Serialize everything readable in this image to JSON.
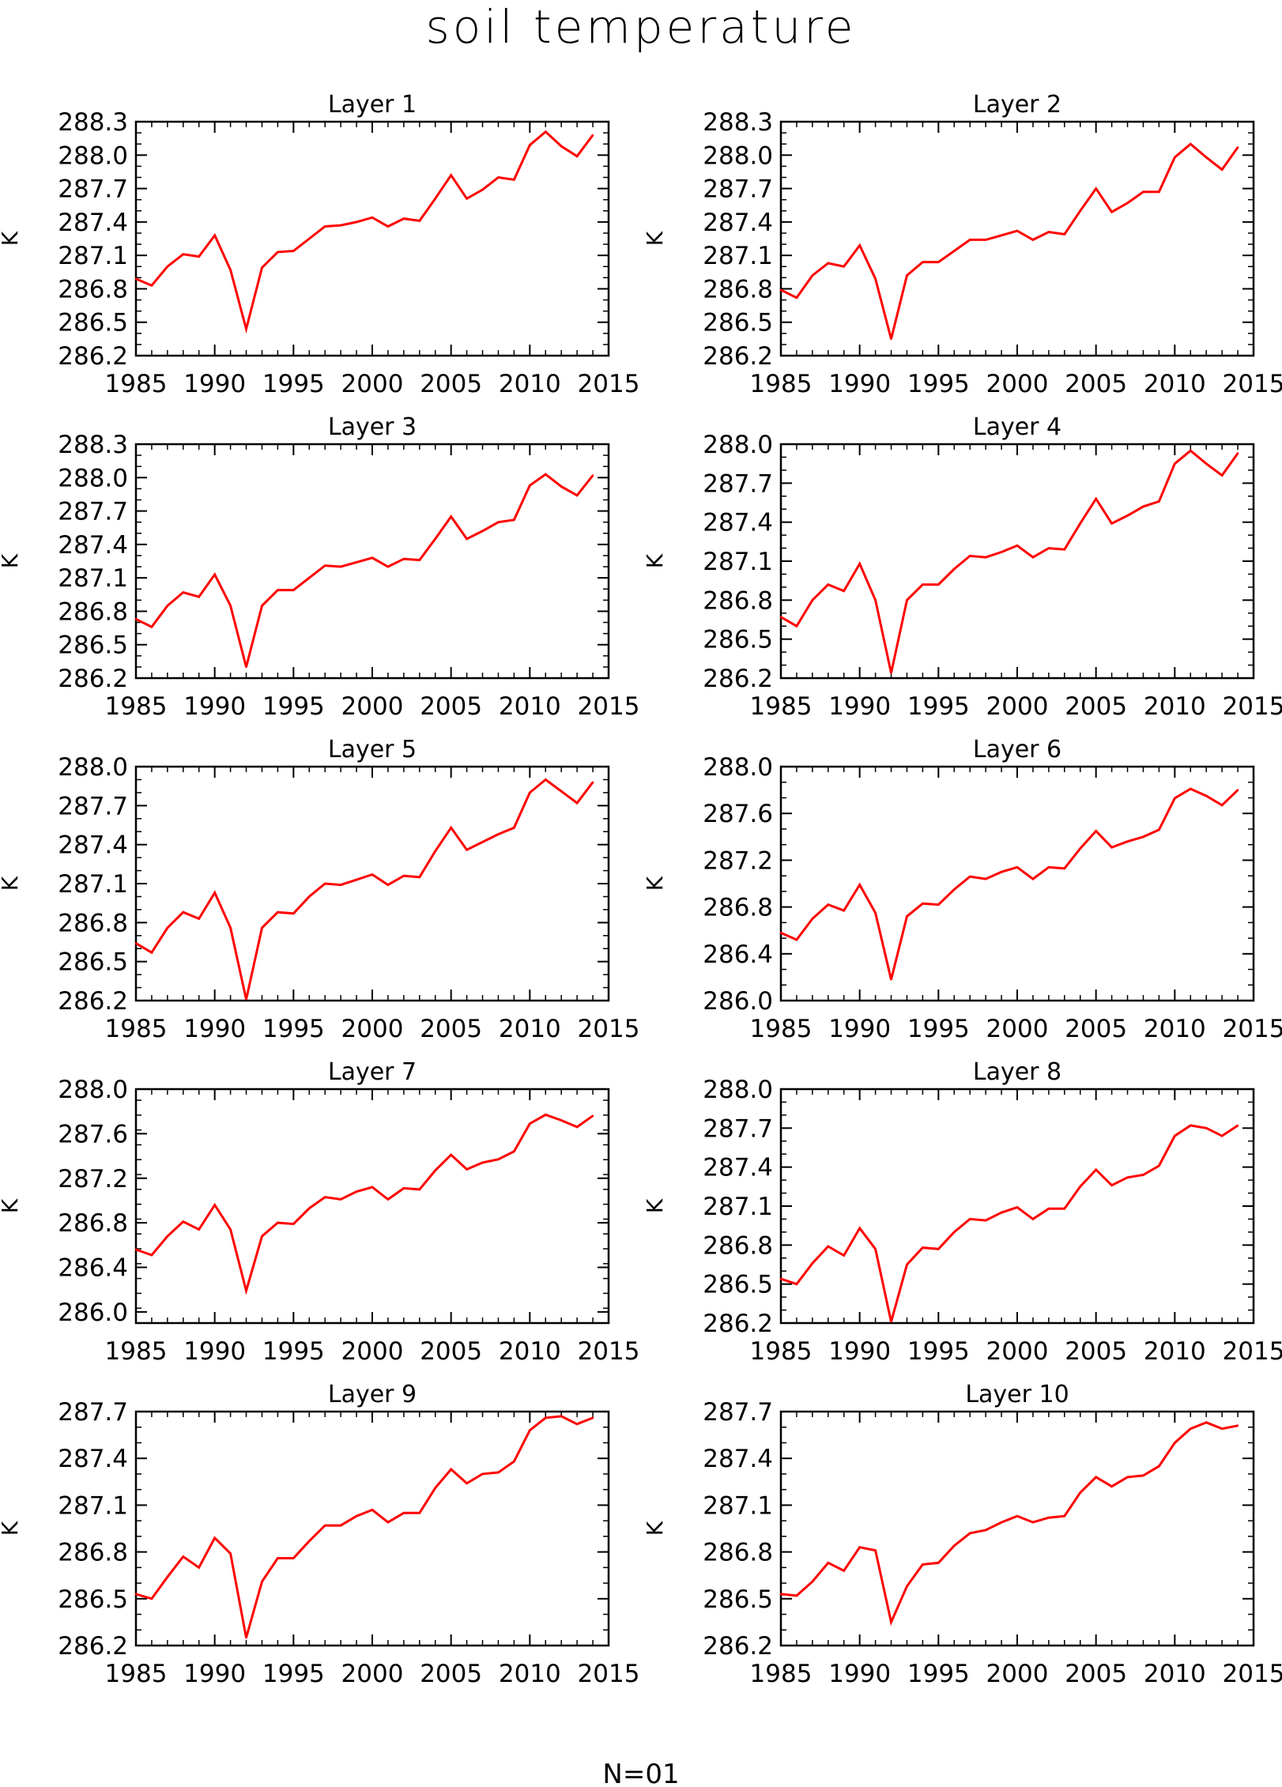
{
  "title": "soil temperature",
  "footer": "N=01",
  "line_color": "#ff0000",
  "chart_data": [
    {
      "type": "line",
      "title": "Layer 1",
      "xlabel": "",
      "ylabel": "K",
      "xlim": [
        1985,
        2015
      ],
      "ylim": [
        286.2,
        288.3
      ],
      "xticks": [
        1985,
        1990,
        1995,
        2000,
        2005,
        2010,
        2015
      ],
      "yticks": [
        "288.3",
        "288.0",
        "287.7",
        "287.4",
        "287.1",
        "286.8",
        "286.5",
        "286.2"
      ],
      "x": [
        1985,
        1986,
        1987,
        1988,
        1989,
        1990,
        1991,
        1992,
        1993,
        1994,
        1995,
        1996,
        1997,
        1998,
        1999,
        2000,
        2001,
        2002,
        2003,
        2004,
        2005,
        2006,
        2007,
        2008,
        2009,
        2010,
        2011,
        2012,
        2013,
        2014
      ],
      "values": [
        286.89,
        286.83,
        287.0,
        287.11,
        287.09,
        287.28,
        286.97,
        286.44,
        286.99,
        287.13,
        287.14,
        287.25,
        287.36,
        287.37,
        287.4,
        287.44,
        287.36,
        287.43,
        287.41,
        287.61,
        287.82,
        287.61,
        287.69,
        287.8,
        287.78,
        288.09,
        288.21,
        288.08,
        287.99,
        288.18
      ]
    },
    {
      "type": "line",
      "title": "Layer 2",
      "xlabel": "",
      "ylabel": "K",
      "xlim": [
        1985,
        2015
      ],
      "ylim": [
        286.2,
        288.3
      ],
      "xticks": [
        1985,
        1990,
        1995,
        2000,
        2005,
        2010,
        2015
      ],
      "yticks": [
        "288.3",
        "288.0",
        "287.7",
        "287.4",
        "287.1",
        "286.8",
        "286.5",
        "286.2"
      ],
      "x": [
        1985,
        1986,
        1987,
        1988,
        1989,
        1990,
        1991,
        1992,
        1993,
        1994,
        1995,
        1996,
        1997,
        1998,
        1999,
        2000,
        2001,
        2002,
        2003,
        2004,
        2005,
        2006,
        2007,
        2008,
        2009,
        2010,
        2011,
        2012,
        2013,
        2014
      ],
      "values": [
        286.79,
        286.72,
        286.92,
        287.03,
        287.0,
        287.19,
        286.89,
        286.35,
        286.92,
        287.04,
        287.04,
        287.14,
        287.24,
        287.24,
        287.28,
        287.32,
        287.24,
        287.31,
        287.29,
        287.5,
        287.7,
        287.49,
        287.57,
        287.67,
        287.67,
        287.98,
        288.1,
        287.98,
        287.87,
        288.07
      ]
    },
    {
      "type": "line",
      "title": "Layer 3",
      "xlabel": "",
      "ylabel": "K",
      "xlim": [
        1985,
        2015
      ],
      "ylim": [
        286.2,
        288.3
      ],
      "xticks": [
        1985,
        1990,
        1995,
        2000,
        2005,
        2010,
        2015
      ],
      "yticks": [
        "288.3",
        "288.0",
        "287.7",
        "287.4",
        "287.1",
        "286.8",
        "286.5",
        "286.2"
      ],
      "x": [
        1985,
        1986,
        1987,
        1988,
        1989,
        1990,
        1991,
        1992,
        1993,
        1994,
        1995,
        1996,
        1997,
        1998,
        1999,
        2000,
        2001,
        2002,
        2003,
        2004,
        2005,
        2006,
        2007,
        2008,
        2009,
        2010,
        2011,
        2012,
        2013,
        2014
      ],
      "values": [
        286.73,
        286.66,
        286.85,
        286.97,
        286.93,
        287.13,
        286.85,
        286.3,
        286.85,
        286.99,
        286.99,
        287.1,
        287.21,
        287.2,
        287.24,
        287.28,
        287.2,
        287.27,
        287.26,
        287.45,
        287.65,
        287.45,
        287.52,
        287.6,
        287.62,
        287.93,
        288.03,
        287.92,
        287.84,
        288.02
      ]
    },
    {
      "type": "line",
      "title": "Layer 4",
      "xlabel": "",
      "ylabel": "K",
      "xlim": [
        1985,
        2015
      ],
      "ylim": [
        286.2,
        288.0
      ],
      "xticks": [
        1985,
        1990,
        1995,
        2000,
        2005,
        2010,
        2015
      ],
      "yticks": [
        "288.0",
        "287.7",
        "287.4",
        "287.1",
        "286.8",
        "286.5",
        "286.2"
      ],
      "x": [
        1985,
        1986,
        1987,
        1988,
        1989,
        1990,
        1991,
        1992,
        1993,
        1994,
        1995,
        1996,
        1997,
        1998,
        1999,
        2000,
        2001,
        2002,
        2003,
        2004,
        2005,
        2006,
        2007,
        2008,
        2009,
        2010,
        2011,
        2012,
        2013,
        2014
      ],
      "values": [
        286.67,
        286.6,
        286.8,
        286.92,
        286.87,
        287.08,
        286.8,
        286.24,
        286.8,
        286.92,
        286.92,
        287.04,
        287.14,
        287.13,
        287.17,
        287.22,
        287.13,
        287.2,
        287.19,
        287.39,
        287.58,
        287.39,
        287.45,
        287.52,
        287.56,
        287.85,
        287.95,
        287.85,
        287.76,
        287.93
      ]
    },
    {
      "type": "line",
      "title": "Layer 5",
      "xlabel": "",
      "ylabel": "K",
      "xlim": [
        1985,
        2015
      ],
      "ylim": [
        286.2,
        288.0
      ],
      "xticks": [
        1985,
        1990,
        1995,
        2000,
        2005,
        2010,
        2015
      ],
      "yticks": [
        "288.0",
        "287.7",
        "287.4",
        "287.1",
        "286.8",
        "286.5",
        "286.2"
      ],
      "x": [
        1985,
        1986,
        1987,
        1988,
        1989,
        1990,
        1991,
        1992,
        1993,
        1994,
        1995,
        1996,
        1997,
        1998,
        1999,
        2000,
        2001,
        2002,
        2003,
        2004,
        2005,
        2006,
        2007,
        2008,
        2009,
        2010,
        2011,
        2012,
        2013,
        2014
      ],
      "values": [
        286.64,
        286.57,
        286.76,
        286.88,
        286.83,
        287.03,
        286.76,
        286.21,
        286.76,
        286.88,
        286.87,
        287.0,
        287.1,
        287.09,
        287.13,
        287.17,
        287.09,
        287.16,
        287.15,
        287.35,
        287.53,
        287.36,
        287.42,
        287.48,
        287.53,
        287.8,
        287.9,
        287.81,
        287.72,
        287.88
      ]
    },
    {
      "type": "line",
      "title": "Layer 6",
      "xlabel": "",
      "ylabel": "K",
      "xlim": [
        1985,
        2015
      ],
      "ylim": [
        286.0,
        288.0
      ],
      "xticks": [
        1985,
        1990,
        1995,
        2000,
        2005,
        2010,
        2015
      ],
      "yticks": [
        "288.0",
        "287.6",
        "287.2",
        "286.8",
        "286.4",
        "286.0"
      ],
      "x": [
        1985,
        1986,
        1987,
        1988,
        1989,
        1990,
        1991,
        1992,
        1993,
        1994,
        1995,
        1996,
        1997,
        1998,
        1999,
        2000,
        2001,
        2002,
        2003,
        2004,
        2005,
        2006,
        2007,
        2008,
        2009,
        2010,
        2011,
        2012,
        2013,
        2014
      ],
      "values": [
        286.58,
        286.52,
        286.7,
        286.82,
        286.77,
        286.99,
        286.75,
        286.18,
        286.72,
        286.83,
        286.82,
        286.95,
        287.06,
        287.04,
        287.1,
        287.14,
        287.04,
        287.14,
        287.13,
        287.3,
        287.45,
        287.31,
        287.36,
        287.4,
        287.46,
        287.73,
        287.81,
        287.75,
        287.67,
        287.8
      ]
    },
    {
      "type": "line",
      "title": "Layer 7",
      "xlabel": "",
      "ylabel": "K",
      "xlim": [
        1985,
        2015
      ],
      "ylim": [
        285.9,
        288.0
      ],
      "xticks": [
        1985,
        1990,
        1995,
        2000,
        2005,
        2010,
        2015
      ],
      "yticks": [
        "288.0",
        "287.6",
        "287.2",
        "286.8",
        "286.4",
        "286.0"
      ],
      "x": [
        1985,
        1986,
        1987,
        1988,
        1989,
        1990,
        1991,
        1992,
        1993,
        1994,
        1995,
        1996,
        1997,
        1998,
        1999,
        2000,
        2001,
        2002,
        2003,
        2004,
        2005,
        2006,
        2007,
        2008,
        2009,
        2010,
        2011,
        2012,
        2013,
        2014
      ],
      "values": [
        286.56,
        286.51,
        286.68,
        286.81,
        286.74,
        286.96,
        286.74,
        286.19,
        286.68,
        286.8,
        286.79,
        286.93,
        287.03,
        287.01,
        287.08,
        287.12,
        287.01,
        287.11,
        287.1,
        287.27,
        287.41,
        287.28,
        287.34,
        287.37,
        287.44,
        287.69,
        287.77,
        287.72,
        287.66,
        287.76
      ]
    },
    {
      "type": "line",
      "title": "Layer 8",
      "xlabel": "",
      "ylabel": "K",
      "xlim": [
        1985,
        2015
      ],
      "ylim": [
        286.2,
        288.0
      ],
      "xticks": [
        1985,
        1990,
        1995,
        2000,
        2005,
        2010,
        2015
      ],
      "yticks": [
        "288.0",
        "287.7",
        "287.4",
        "287.1",
        "286.8",
        "286.5",
        "286.2"
      ],
      "x": [
        1985,
        1986,
        1987,
        1988,
        1989,
        1990,
        1991,
        1992,
        1993,
        1994,
        1995,
        1996,
        1997,
        1998,
        1999,
        2000,
        2001,
        2002,
        2003,
        2004,
        2005,
        2006,
        2007,
        2008,
        2009,
        2010,
        2011,
        2012,
        2013,
        2014
      ],
      "values": [
        286.54,
        286.5,
        286.66,
        286.79,
        286.72,
        286.93,
        286.77,
        286.21,
        286.65,
        286.78,
        286.77,
        286.9,
        287.0,
        286.99,
        287.05,
        287.09,
        287.0,
        287.08,
        287.08,
        287.25,
        287.38,
        287.26,
        287.32,
        287.34,
        287.41,
        287.64,
        287.72,
        287.7,
        287.64,
        287.72
      ]
    },
    {
      "type": "line",
      "title": "Layer 9",
      "xlabel": "",
      "ylabel": "K",
      "xlim": [
        1985,
        2015
      ],
      "ylim": [
        286.2,
        287.7
      ],
      "xticks": [
        1985,
        1990,
        1995,
        2000,
        2005,
        2010,
        2015
      ],
      "yticks": [
        "287.7",
        "287.4",
        "287.1",
        "286.8",
        "286.5",
        "286.2"
      ],
      "x": [
        1985,
        1986,
        1987,
        1988,
        1989,
        1990,
        1991,
        1992,
        1993,
        1994,
        1995,
        1996,
        1997,
        1998,
        1999,
        2000,
        2001,
        2002,
        2003,
        2004,
        2005,
        2006,
        2007,
        2008,
        2009,
        2010,
        2011,
        2012,
        2013,
        2014
      ],
      "values": [
        286.53,
        286.5,
        286.64,
        286.77,
        286.7,
        286.89,
        286.79,
        286.25,
        286.61,
        286.76,
        286.76,
        286.87,
        286.97,
        286.97,
        287.03,
        287.07,
        286.99,
        287.05,
        287.05,
        287.21,
        287.33,
        287.24,
        287.3,
        287.31,
        287.38,
        287.58,
        287.66,
        287.67,
        287.62,
        287.66
      ]
    },
    {
      "type": "line",
      "title": "Layer 10",
      "xlabel": "",
      "ylabel": "K",
      "xlim": [
        1985,
        2015
      ],
      "ylim": [
        286.2,
        287.7
      ],
      "xticks": [
        1985,
        1990,
        1995,
        2000,
        2005,
        2010,
        2015
      ],
      "yticks": [
        "287.7",
        "287.4",
        "287.1",
        "286.8",
        "286.5",
        "286.2"
      ],
      "x": [
        1985,
        1986,
        1987,
        1988,
        1989,
        1990,
        1991,
        1992,
        1993,
        1994,
        1995,
        1996,
        1997,
        1998,
        1999,
        2000,
        2001,
        2002,
        2003,
        2004,
        2005,
        2006,
        2007,
        2008,
        2009,
        2010,
        2011,
        2012,
        2013,
        2014
      ],
      "values": [
        286.53,
        286.52,
        286.61,
        286.73,
        286.68,
        286.83,
        286.81,
        286.35,
        286.58,
        286.72,
        286.73,
        286.84,
        286.92,
        286.94,
        286.99,
        287.03,
        286.99,
        287.02,
        287.03,
        287.18,
        287.28,
        287.22,
        287.28,
        287.29,
        287.35,
        287.5,
        287.59,
        287.63,
        287.59,
        287.61
      ]
    }
  ]
}
